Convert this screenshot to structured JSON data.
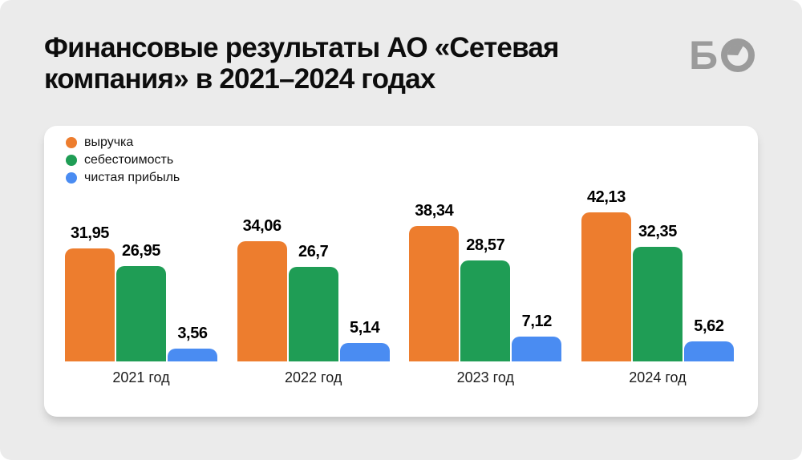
{
  "header": {
    "title_line1": "Финансовые результаты АО «Сетевая",
    "title_line2": "компания» в 2021–2024 годах",
    "logo_letter": "Б"
  },
  "colors": {
    "background": "#ebebeb",
    "card": "#ffffff",
    "title_text": "#0d0d0d",
    "logo_gray": "#9b9b9b",
    "revenue_orange": "#ed7d2e",
    "cost_green": "#1f9d55",
    "profit_blue": "#4a8cf2"
  },
  "legend": [
    {
      "label": "выручка",
      "color": "#ed7d2e"
    },
    {
      "label": "себестоимость",
      "color": "#1f9d55"
    },
    {
      "label": "чистая прибыль",
      "color": "#4a8cf2"
    }
  ],
  "chart_data": {
    "type": "bar",
    "title": "Финансовые результаты АО «Сетевая компания» в 2021–2024 годах",
    "categories": [
      "2021 год",
      "2022 год",
      "2023 год",
      "2024 год"
    ],
    "series": [
      {
        "name": "выручка",
        "color": "#ed7d2e",
        "values": [
          31.95,
          34.06,
          38.34,
          42.13
        ],
        "labels": [
          "31,95",
          "34,06",
          "38,34",
          "42,13"
        ]
      },
      {
        "name": "себестоимость",
        "color": "#1f9d55",
        "values": [
          26.95,
          26.7,
          28.57,
          32.35
        ],
        "labels": [
          "26,95",
          "26,7",
          "28,57",
          "32,35"
        ]
      },
      {
        "name": "чистая прибыль",
        "color": "#4a8cf2",
        "values": [
          3.56,
          5.14,
          7.12,
          5.62
        ],
        "labels": [
          "3,56",
          "5,14",
          "7,12",
          "5,62"
        ]
      }
    ],
    "xlabel": "",
    "ylabel": "",
    "ylim": [
      0,
      45
    ],
    "grid": false,
    "axis_lines": false,
    "value_labels": "above-bars",
    "legend_position": "top-left"
  }
}
